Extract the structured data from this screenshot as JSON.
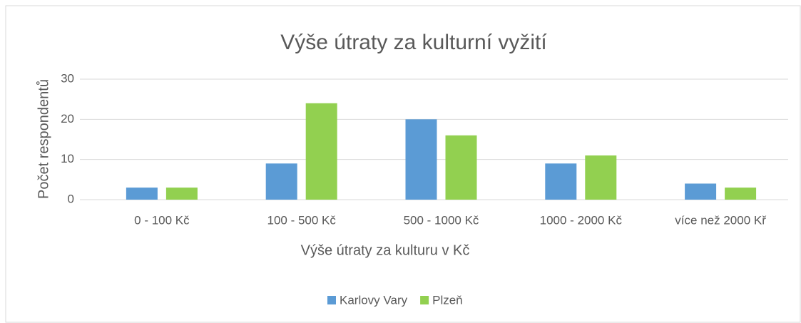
{
  "chart_data": {
    "type": "bar",
    "title": "Výše útraty za kulturní vyžití",
    "x_label": "Výše útraty za kulturu v Kč",
    "y_label": "Počet respondentů",
    "categories": [
      "0 - 100 Kč",
      "100 - 500 Kč",
      "500 - 1000 Kč",
      "1000 - 2000 Kč",
      "více než 2000 Kř"
    ],
    "series": [
      {
        "name": "Karlovy Vary",
        "color": "#5b9bd5",
        "values": [
          3,
          9,
          20,
          9,
          4
        ]
      },
      {
        "name": "Plzeň",
        "color": "#92d050",
        "values": [
          3,
          24,
          16,
          11,
          3
        ]
      }
    ],
    "ylim": [
      0,
      30
    ],
    "yticks": [
      0,
      10,
      20,
      30
    ],
    "grid": true,
    "legend": "bottom"
  }
}
